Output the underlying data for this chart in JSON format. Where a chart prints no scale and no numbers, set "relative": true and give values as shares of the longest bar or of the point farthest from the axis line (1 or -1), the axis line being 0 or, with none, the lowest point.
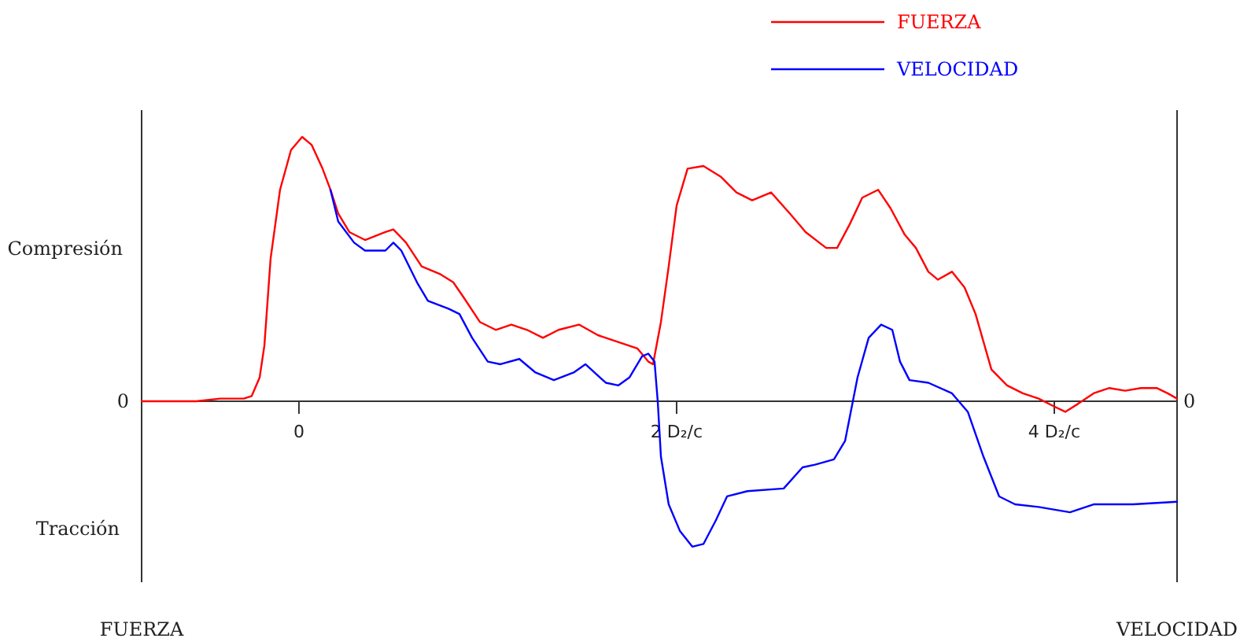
{
  "chart_data": {
    "type": "line",
    "relative": true,
    "ylabel": "FUERZA",
    "y2label": "VELOCIDAD",
    "legend": "top right",
    "grid": false,
    "marker": "none",
    "line_style": "solid",
    "xlim": [
      -0.833,
      4.65
    ],
    "xticks": [
      0,
      {
        "value": 2,
        "label": "2 D₂/c"
      },
      {
        "value": 4,
        "label": "4 D₂/c"
      }
    ],
    "annotations": [
      "Compresión",
      "Tracción",
      "0",
      "0"
    ],
    "series": [
      {
        "name": "FUERZA",
        "color": "#ff0000",
        "x": [
          -0.833,
          -0.542,
          -0.417,
          -0.292,
          -0.25,
          -0.208,
          -0.183,
          -0.15,
          -0.1,
          -0.042,
          0.017,
          0.067,
          0.125,
          0.167,
          0.208,
          0.267,
          0.35,
          0.458,
          0.5,
          0.567,
          0.65,
          0.75,
          0.817,
          0.875,
          0.958,
          1.042,
          1.125,
          1.208,
          1.292,
          1.375,
          1.483,
          1.583,
          1.708,
          1.792,
          1.85,
          1.875,
          1.917,
          1.958,
          2.0,
          2.058,
          2.142,
          2.233,
          2.317,
          2.4,
          2.5,
          2.6,
          2.683,
          2.792,
          2.85,
          2.917,
          2.983,
          3.067,
          3.133,
          3.208,
          3.267,
          3.333,
          3.383,
          3.458,
          3.525,
          3.583,
          3.667,
          3.75,
          3.833,
          3.917,
          4.0,
          4.058,
          4.125,
          4.208,
          4.292,
          4.375,
          4.458,
          4.542,
          4.6,
          4.65
        ],
        "values": [
          0,
          0,
          0.01,
          0.01,
          0.02,
          0.09,
          0.21,
          0.54,
          0.8,
          0.95,
          1,
          0.97,
          0.88,
          0.8,
          0.71,
          0.64,
          0.61,
          0.64,
          0.65,
          0.6,
          0.51,
          0.48,
          0.45,
          0.39,
          0.3,
          0.27,
          0.29,
          0.27,
          0.24,
          0.27,
          0.29,
          0.25,
          0.22,
          0.2,
          0.15,
          0.14,
          0.3,
          0.51,
          0.74,
          0.88,
          0.89,
          0.85,
          0.79,
          0.76,
          0.79,
          0.71,
          0.64,
          0.58,
          0.58,
          0.67,
          0.77,
          0.8,
          0.73,
          0.63,
          0.58,
          0.49,
          0.46,
          0.49,
          0.43,
          0.33,
          0.12,
          0.06,
          0.03,
          0.01,
          -0.02,
          -0.04,
          -0.01,
          0.03,
          0.05,
          0.04,
          0.05,
          0.05,
          0.03,
          0.01
        ]
      },
      {
        "name": "VELOCIDAD",
        "color": "#0000ff",
        "x": [
          0.167,
          0.208,
          0.292,
          0.35,
          0.458,
          0.5,
          0.542,
          0.625,
          0.683,
          0.792,
          0.85,
          0.917,
          1.0,
          1.067,
          1.167,
          1.25,
          1.35,
          1.458,
          1.517,
          1.625,
          1.692,
          1.75,
          1.817,
          1.85,
          1.883,
          1.9,
          1.917,
          1.958,
          2.017,
          2.083,
          2.142,
          2.208,
          2.267,
          2.375,
          2.567,
          2.667,
          2.733,
          2.833,
          2.892,
          2.958,
          3.017,
          3.083,
          3.142,
          3.183,
          3.233,
          3.333,
          3.458,
          3.542,
          3.625,
          3.708,
          3.792,
          3.917,
          4.083,
          4.208,
          4.417,
          4.65
        ],
        "values": [
          0.8,
          0.68,
          0.6,
          0.57,
          0.57,
          0.6,
          0.57,
          0.45,
          0.38,
          0.35,
          0.33,
          0.24,
          0.15,
          0.14,
          0.16,
          0.11,
          0.08,
          0.11,
          0.14,
          0.07,
          0.06,
          0.09,
          0.17,
          0.18,
          0.15,
          0,
          -0.21,
          -0.39,
          -0.49,
          -0.55,
          -0.54,
          -0.45,
          -0.36,
          -0.34,
          -0.33,
          -0.25,
          -0.24,
          -0.22,
          -0.15,
          0.09,
          0.24,
          0.29,
          0.27,
          0.15,
          0.08,
          0.07,
          0.03,
          -0.04,
          -0.21,
          -0.36,
          -0.39,
          -0.4,
          -0.42,
          -0.39,
          -0.39,
          -0.38
        ]
      }
    ]
  }
}
